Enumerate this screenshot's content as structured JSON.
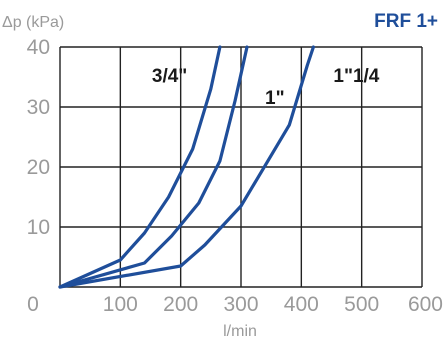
{
  "chart_data": {
    "type": "line",
    "title": "FRF 1+",
    "ylabel": "Δp (kPa)",
    "xlabel": "l/min",
    "x_ticks": [
      0,
      100,
      200,
      300,
      400,
      500,
      600
    ],
    "y_ticks": [
      0,
      10,
      20,
      30,
      40
    ],
    "xlim": [
      0,
      600
    ],
    "ylim": [
      0,
      40
    ],
    "grid": true,
    "colors": {
      "line": "#1f4e9a",
      "title": "#1f4e9a",
      "grid": "#222222",
      "tick": "#9a9a9a"
    },
    "series": [
      {
        "name": "3/4\"",
        "points": [
          [
            0,
            0
          ],
          [
            100,
            4.5
          ],
          [
            140,
            9
          ],
          [
            180,
            15
          ],
          [
            220,
            23
          ],
          [
            250,
            33
          ],
          [
            265,
            40
          ]
        ]
      },
      {
        "name": "1\"",
        "points": [
          [
            0,
            0
          ],
          [
            140,
            4
          ],
          [
            185,
            8.5
          ],
          [
            230,
            14
          ],
          [
            265,
            21
          ],
          [
            290,
            31
          ],
          [
            310,
            40
          ]
        ]
      },
      {
        "name": "1\"1/4",
        "points": [
          [
            0,
            0
          ],
          [
            200,
            3.5
          ],
          [
            240,
            7
          ],
          [
            300,
            13.5
          ],
          [
            380,
            27
          ],
          [
            410,
            37
          ],
          [
            420,
            40
          ]
        ]
      }
    ]
  }
}
